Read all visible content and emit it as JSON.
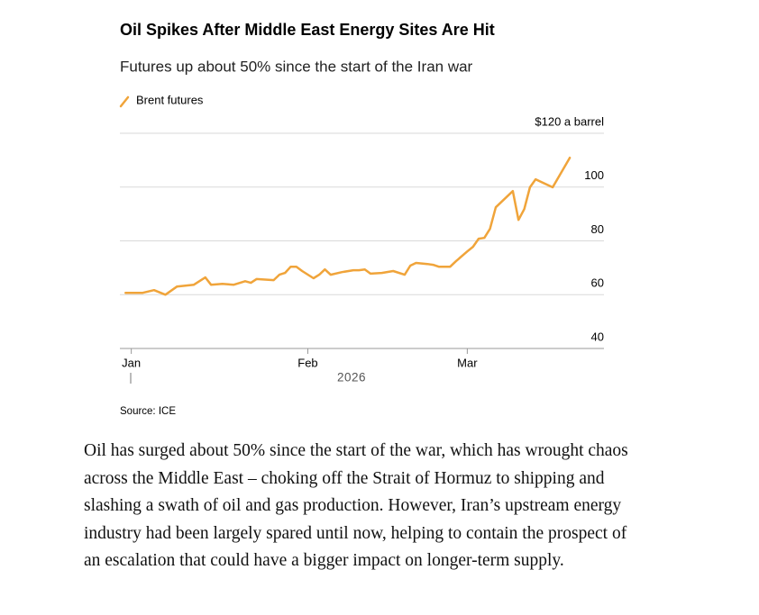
{
  "chart_data": {
    "type": "line",
    "title": "Oil Spikes After Middle East Energy Sites Are Hit",
    "subtitle": "Futures up about 50% since the start of the Iran war",
    "x": [
      -1,
      2,
      4,
      6,
      8,
      11,
      13,
      14,
      16,
      18,
      20,
      21,
      22,
      25,
      26,
      27,
      28,
      29,
      30,
      32,
      33,
      34,
      35,
      37,
      39,
      40,
      41,
      42,
      44,
      46,
      48,
      49,
      50,
      52,
      53,
      54,
      56,
      57,
      59,
      60,
      61,
      62,
      63,
      64,
      67,
      68,
      69,
      70,
      71,
      72,
      74,
      77
    ],
    "series": [
      {
        "name": "Brent futures",
        "color": "#f0a43a",
        "values": [
          60.7,
          60.7,
          61.7,
          60,
          63,
          63.7,
          66.4,
          63.7,
          64,
          63.7,
          65,
          64.4,
          65.8,
          65.4,
          67.4,
          68.1,
          70.4,
          70.4,
          68.8,
          66.1,
          67.4,
          69.4,
          67.4,
          68.4,
          69.1,
          69.1,
          69.4,
          67.8,
          68.1,
          68.8,
          67.4,
          70.8,
          71.8,
          71.4,
          71.1,
          70.4,
          70.4,
          72.4,
          76.1,
          77.8,
          80.8,
          81.1,
          84.5,
          92.5,
          98.5,
          87.8,
          91.8,
          99.9,
          102.9,
          101.9,
          99.9,
          110.9
        ]
      }
    ],
    "xlim": [
      -2,
      83
    ],
    "xticks": [
      {
        "value": 0,
        "label": "Jan"
      },
      {
        "value": 31,
        "label": "Feb"
      },
      {
        "value": 59,
        "label": "Mar"
      }
    ],
    "xlabel": "2026",
    "ylim": [
      40,
      120
    ],
    "yticks": [
      40,
      60,
      80,
      100,
      {
        "value": 120,
        "label": "$120 a barrel"
      }
    ],
    "grid": true,
    "legend": "top-left",
    "source": "Source: ICE"
  },
  "article_text": "Oil has surged about 50% since the start of the war, which has wrought chaos across the Middle East – choking off the Strait of Hormuz to shipping and slashing a swath of oil and gas production. However, Iran’s upstream energy industry had been largely spared until now, helping to contain the prospect of an escalation that could have a bigger impact on longer-term supply."
}
